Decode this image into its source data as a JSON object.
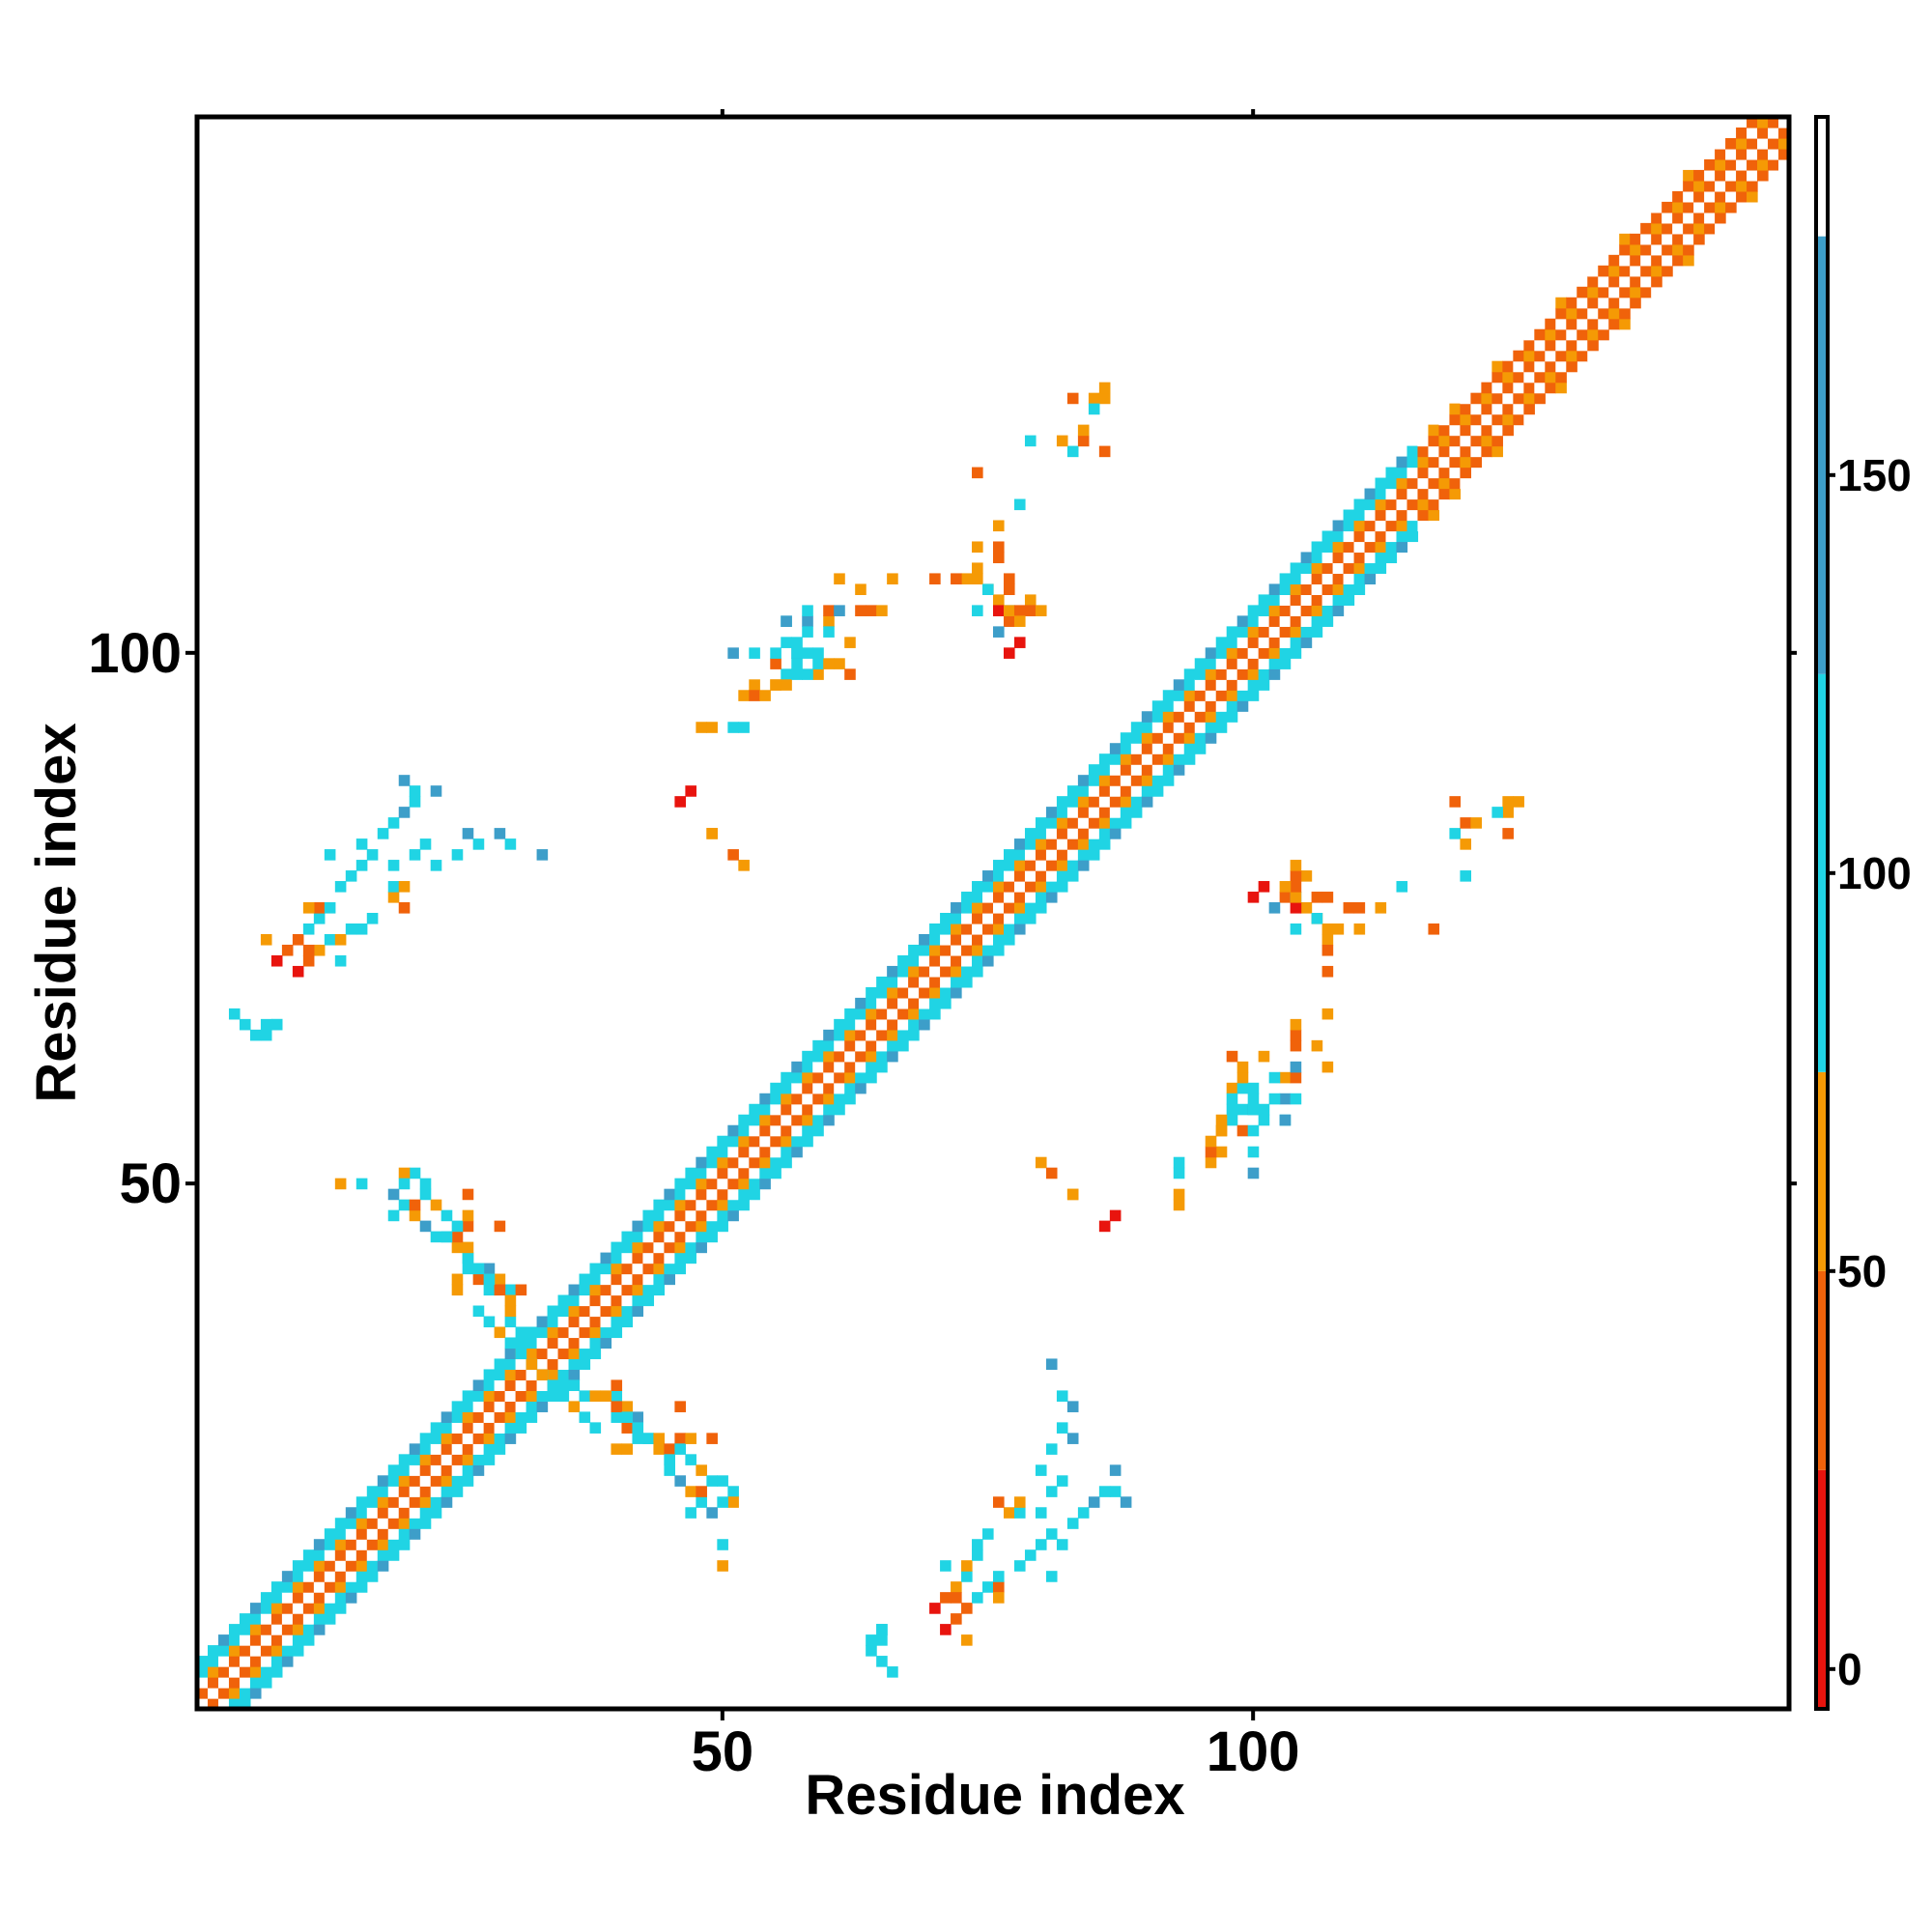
{
  "chart_data": {
    "type": "heatmap",
    "title": "",
    "xlabel": "Residue index",
    "ylabel": "Residue index",
    "xlim": [
      1,
      150
    ],
    "ylim": [
      1,
      150
    ],
    "x_ticks": [
      50,
      100
    ],
    "y_ticks": [
      50,
      100
    ],
    "x_tick_labels": [
      "50",
      "100"
    ],
    "y_tick_labels": [
      "50",
      "100"
    ],
    "colorbar": {
      "range": [
        -5,
        195
      ],
      "ticks": [
        0,
        50,
        100,
        150
      ],
      "tick_labels": [
        "0",
        "50",
        "100",
        "150"
      ],
      "bands": [
        {
          "from": -5,
          "to": 25,
          "color": "#e8140e"
        },
        {
          "from": 25,
          "to": 50,
          "color": "#f0620a"
        },
        {
          "from": 50,
          "to": 75,
          "color": "#f59a05"
        },
        {
          "from": 75,
          "to": 125,
          "color": "#20d4e4"
        },
        {
          "from": 125,
          "to": 180,
          "color": "#3d9ec9"
        },
        {
          "from": 180,
          "to": 195,
          "color": "#ffffff"
        }
      ]
    },
    "grid": false,
    "diagonal_band": {
      "x_start": 1,
      "x_end": 150,
      "colors": [
        "#ffffff",
        "#f0620a",
        "#f59a05",
        "#20d4e4",
        "#3d9ec9"
      ]
    },
    "points": [
      [
        4,
        66,
        88
      ],
      [
        7,
        65,
        110
      ],
      [
        8,
        65,
        115
      ],
      [
        10,
        70,
        20
      ],
      [
        11,
        71,
        40
      ],
      [
        12,
        72,
        60
      ],
      [
        13,
        73,
        90
      ],
      [
        14,
        73,
        70
      ],
      [
        15,
        74,
        100
      ],
      [
        14,
        71,
        110
      ],
      [
        16,
        74,
        90
      ],
      [
        17,
        75,
        95
      ],
      [
        19,
        77,
        60
      ],
      [
        19,
        78,
        100
      ],
      [
        20,
        78,
        55
      ],
      [
        20,
        76,
        40
      ],
      [
        19,
        80,
        90
      ],
      [
        21,
        81,
        95
      ],
      [
        22,
        82,
        100
      ],
      [
        23,
        80,
        95
      ],
      [
        25,
        81,
        90
      ],
      [
        26,
        83,
        135
      ],
      [
        27,
        82,
        110
      ],
      [
        29,
        83,
        130
      ],
      [
        30,
        82,
        110
      ],
      [
        33,
        81,
        135
      ],
      [
        14,
        50,
        55
      ],
      [
        16,
        50,
        95
      ],
      [
        19,
        49,
        130
      ],
      [
        20,
        48,
        90
      ],
      [
        21,
        47,
        70
      ],
      [
        22,
        46,
        130
      ],
      [
        23,
        45,
        110
      ],
      [
        24,
        45,
        90
      ],
      [
        25,
        44,
        70
      ],
      [
        26,
        43,
        110
      ],
      [
        27,
        42,
        95
      ],
      [
        28,
        42,
        130
      ],
      [
        29,
        41,
        60
      ],
      [
        30,
        40,
        100
      ],
      [
        27,
        41,
        40
      ],
      [
        25,
        40,
        70
      ],
      [
        28,
        40,
        90
      ],
      [
        31,
        40,
        40
      ],
      [
        26,
        46,
        40
      ],
      [
        29,
        46,
        35
      ],
      [
        19,
        47,
        90
      ],
      [
        29,
        36,
        65
      ],
      [
        30,
        35,
        80
      ],
      [
        31,
        34,
        65
      ],
      [
        32,
        33,
        100
      ],
      [
        33,
        32,
        60
      ],
      [
        34,
        31,
        85
      ],
      [
        35,
        31,
        95
      ],
      [
        36,
        31,
        110
      ],
      [
        37,
        30,
        110
      ],
      [
        38,
        30,
        60
      ],
      [
        39,
        30,
        60
      ],
      [
        37,
        28,
        100
      ],
      [
        40,
        29,
        40
      ],
      [
        41,
        28,
        110
      ],
      [
        42,
        27,
        100
      ],
      [
        43,
        26,
        110
      ],
      [
        44,
        26,
        60
      ],
      [
        45,
        25,
        40
      ],
      [
        46,
        25,
        90
      ],
      [
        47,
        24,
        100
      ],
      [
        48,
        23,
        70
      ],
      [
        49,
        22,
        95
      ],
      [
        50,
        22,
        80
      ],
      [
        51,
        21,
        95
      ],
      [
        41,
        25,
        60
      ],
      [
        42,
        26,
        80
      ],
      [
        45,
        24,
        80
      ],
      [
        47,
        26,
        70
      ],
      [
        49,
        26,
        40
      ],
      [
        48,
        21,
        40
      ],
      [
        51,
        20,
        60
      ],
      [
        50,
        20,
        90
      ],
      [
        38,
        27,
        95
      ],
      [
        64,
        6,
        110
      ],
      [
        65,
        5,
        100
      ],
      [
        65,
        8,
        100
      ],
      [
        64,
        7,
        110
      ],
      [
        71,
        8,
        20
      ],
      [
        72,
        9,
        30
      ],
      [
        73,
        10,
        25
      ],
      [
        73,
        7,
        60
      ],
      [
        74,
        11,
        90
      ],
      [
        75,
        12,
        100
      ],
      [
        72,
        11,
        35
      ],
      [
        76,
        12,
        40
      ],
      [
        76,
        11,
        70
      ],
      [
        76,
        13,
        95
      ],
      [
        78,
        14,
        110
      ],
      [
        79,
        15,
        90
      ],
      [
        80,
        16,
        95
      ],
      [
        81,
        13,
        110
      ],
      [
        81,
        17,
        90
      ],
      [
        82,
        16,
        100
      ],
      [
        83,
        18,
        85
      ],
      [
        84,
        19,
        90
      ],
      [
        85,
        20,
        130
      ],
      [
        86,
        21,
        95
      ],
      [
        87,
        21,
        90
      ],
      [
        88,
        20,
        130
      ],
      [
        87,
        23,
        125
      ],
      [
        80,
        52,
        55
      ],
      [
        83,
        49,
        55
      ],
      [
        87,
        47,
        15
      ],
      [
        93,
        51,
        95
      ],
      [
        93,
        48,
        70
      ],
      [
        96,
        52,
        60
      ],
      [
        97,
        53,
        55
      ],
      [
        97,
        55,
        70
      ],
      [
        98,
        56,
        80
      ],
      [
        99,
        57,
        100
      ],
      [
        100,
        57,
        130
      ],
      [
        100,
        58,
        85
      ],
      [
        101,
        57,
        90
      ],
      [
        100,
        51,
        130
      ],
      [
        99,
        55,
        40
      ],
      [
        98,
        59,
        55
      ],
      [
        103,
        58,
        130
      ],
      [
        103,
        56,
        100
      ],
      [
        103,
        60,
        70
      ],
      [
        104,
        60,
        40
      ],
      [
        107,
        61,
        60
      ],
      [
        100,
        77,
        20
      ],
      [
        103,
        77,
        45
      ],
      [
        104,
        77,
        95
      ],
      [
        104,
        74,
        100
      ],
      [
        105,
        76,
        60
      ],
      [
        106,
        77,
        30
      ],
      [
        107,
        77,
        40
      ],
      [
        106,
        75,
        55
      ],
      [
        105,
        79,
        60
      ],
      [
        107,
        73,
        60
      ],
      [
        110,
        74,
        70
      ],
      [
        114,
        78,
        100
      ],
      [
        119,
        83,
        95
      ],
      [
        120,
        82,
        70
      ],
      [
        120,
        84,
        40
      ],
      [
        121,
        84,
        60
      ],
      [
        119,
        86,
        40
      ],
      [
        46,
        86,
        20
      ],
      [
        49,
        83,
        60
      ],
      [
        51,
        81,
        40
      ],
      [
        49,
        93,
        70
      ],
      [
        52,
        93,
        95
      ],
      [
        53,
        96,
        40
      ],
      [
        54,
        96,
        55
      ],
      [
        55,
        97,
        70
      ],
      [
        56,
        97,
        60
      ],
      [
        57,
        98,
        80
      ],
      [
        58,
        98,
        110
      ],
      [
        59,
        99,
        95
      ],
      [
        60,
        99,
        70
      ],
      [
        61,
        99,
        60
      ],
      [
        62,
        98,
        40
      ],
      [
        53,
        100,
        90
      ],
      [
        55,
        100,
        100
      ],
      [
        56,
        101,
        110
      ],
      [
        57,
        100,
        95
      ],
      [
        59,
        100,
        110
      ],
      [
        58,
        102,
        90
      ],
      [
        60,
        102,
        110
      ],
      [
        62,
        101,
        60
      ],
      [
        56,
        103,
        130
      ],
      [
        58,
        104,
        110
      ],
      [
        61,
        104,
        130
      ],
      [
        63,
        104,
        40
      ],
      [
        64,
        104,
        40
      ],
      [
        65,
        104,
        55
      ],
      [
        63,
        106,
        60
      ],
      [
        66,
        107,
        60
      ],
      [
        70,
        107,
        40
      ],
      [
        72,
        107,
        45
      ],
      [
        74,
        107,
        50
      ],
      [
        75,
        106,
        110
      ],
      [
        76,
        104,
        20
      ],
      [
        77,
        104,
        60
      ],
      [
        78,
        104,
        40
      ],
      [
        79,
        104,
        30
      ],
      [
        80,
        104,
        60
      ],
      [
        78,
        103,
        70
      ],
      [
        76,
        102,
        130
      ],
      [
        78,
        101,
        20
      ],
      [
        74,
        108,
        60
      ],
      [
        76,
        109,
        40
      ],
      [
        76,
        110,
        45
      ],
      [
        76,
        112,
        60
      ],
      [
        74,
        117,
        45
      ],
      [
        79,
        120,
        100
      ],
      [
        83,
        124,
        45
      ],
      [
        85,
        124,
        50
      ],
      [
        86,
        124,
        70
      ],
      [
        86,
        125,
        60
      ],
      [
        85,
        123,
        95
      ]
    ]
  }
}
